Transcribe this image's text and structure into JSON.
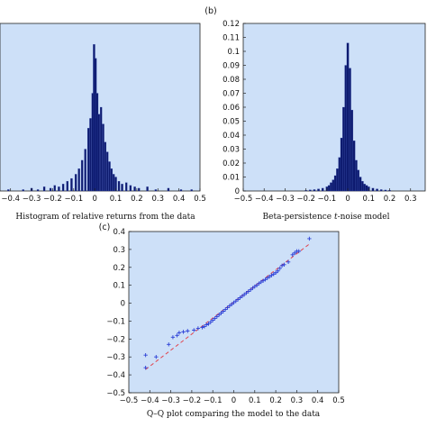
{
  "chart_data": [
    {
      "type": "bar",
      "panel_label": "",
      "caption": "Histogram of relative returns from the data",
      "xlim": [
        -0.45,
        0.5
      ],
      "ylim": [
        0,
        0.12
      ],
      "xticks": [
        "−0.4",
        "−0.3",
        "−0.2",
        "−0.1",
        "0",
        "0.1",
        "0.2",
        "0.3",
        "0.4",
        "0.5"
      ],
      "xtick_values": [
        -0.4,
        -0.3,
        -0.2,
        -0.1,
        0,
        0.1,
        0.2,
        0.3,
        0.4,
        0.5
      ],
      "background": "#cde0f8",
      "bar_color": "#0d1a6e",
      "bins": [
        {
          "x": -0.41,
          "v": 0.001
        },
        {
          "x": -0.34,
          "v": 0.001
        },
        {
          "x": -0.3,
          "v": 0.002
        },
        {
          "x": -0.27,
          "v": 0.001
        },
        {
          "x": -0.24,
          "v": 0.003
        },
        {
          "x": -0.21,
          "v": 0.002
        },
        {
          "x": -0.19,
          "v": 0.004
        },
        {
          "x": -0.17,
          "v": 0.003
        },
        {
          "x": -0.15,
          "v": 0.005
        },
        {
          "x": -0.13,
          "v": 0.007
        },
        {
          "x": -0.11,
          "v": 0.009
        },
        {
          "x": -0.09,
          "v": 0.012
        },
        {
          "x": -0.075,
          "v": 0.016
        },
        {
          "x": -0.06,
          "v": 0.022
        },
        {
          "x": -0.045,
          "v": 0.03
        },
        {
          "x": -0.03,
          "v": 0.045
        },
        {
          "x": -0.02,
          "v": 0.052
        },
        {
          "x": -0.01,
          "v": 0.07
        },
        {
          "x": -0.003,
          "v": 0.105
        },
        {
          "x": 0.004,
          "v": 0.095
        },
        {
          "x": 0.012,
          "v": 0.07
        },
        {
          "x": 0.02,
          "v": 0.055
        },
        {
          "x": 0.03,
          "v": 0.06
        },
        {
          "x": 0.04,
          "v": 0.048
        },
        {
          "x": 0.05,
          "v": 0.035
        },
        {
          "x": 0.06,
          "v": 0.028
        },
        {
          "x": 0.07,
          "v": 0.021
        },
        {
          "x": 0.08,
          "v": 0.016
        },
        {
          "x": 0.09,
          "v": 0.012
        },
        {
          "x": 0.1,
          "v": 0.01
        },
        {
          "x": 0.115,
          "v": 0.007
        },
        {
          "x": 0.13,
          "v": 0.005
        },
        {
          "x": 0.15,
          "v": 0.006
        },
        {
          "x": 0.17,
          "v": 0.004
        },
        {
          "x": 0.19,
          "v": 0.003
        },
        {
          "x": 0.21,
          "v": 0.002
        },
        {
          "x": 0.25,
          "v": 0.003
        },
        {
          "x": 0.29,
          "v": 0.001
        },
        {
          "x": 0.35,
          "v": 0.002
        },
        {
          "x": 0.41,
          "v": 0.001
        },
        {
          "x": 0.46,
          "v": 0.001
        }
      ]
    },
    {
      "type": "bar",
      "panel_label": "(b)",
      "caption_before": "Beta-persistence ",
      "caption_italic": "t",
      "caption_after": "-noise model",
      "xlim": [
        -0.5,
        0.37
      ],
      "ylim": [
        0,
        0.12
      ],
      "xticks": [
        "−0.5",
        "−0.4",
        "−0.3",
        "−0.2",
        "−0.1",
        "0",
        "0.1",
        "0.2",
        "0.3"
      ],
      "xtick_values": [
        -0.5,
        -0.4,
        -0.3,
        -0.2,
        -0.1,
        0,
        0.1,
        0.2,
        0.3
      ],
      "yticks": [
        "0",
        "0.01",
        "0.02",
        "0.03",
        "0.04",
        "0.05",
        "0.06",
        "0.07",
        "0.08",
        "0.09",
        "0.1",
        "0.11",
        "0.12"
      ],
      "ytick_values": [
        0,
        0.01,
        0.02,
        0.03,
        0.04,
        0.05,
        0.06,
        0.07,
        0.08,
        0.09,
        0.1,
        0.11,
        0.12
      ],
      "background": "#cde0f8",
      "bar_color": "#0d1a6e",
      "bins": [
        {
          "x": -0.2,
          "v": 0.0005
        },
        {
          "x": -0.18,
          "v": 0.0008
        },
        {
          "x": -0.16,
          "v": 0.001
        },
        {
          "x": -0.14,
          "v": 0.0015
        },
        {
          "x": -0.12,
          "v": 0.002
        },
        {
          "x": -0.1,
          "v": 0.003
        },
        {
          "x": -0.09,
          "v": 0.004
        },
        {
          "x": -0.08,
          "v": 0.006
        },
        {
          "x": -0.07,
          "v": 0.008
        },
        {
          "x": -0.06,
          "v": 0.011
        },
        {
          "x": -0.05,
          "v": 0.016
        },
        {
          "x": -0.04,
          "v": 0.024
        },
        {
          "x": -0.03,
          "v": 0.038
        },
        {
          "x": -0.02,
          "v": 0.06
        },
        {
          "x": -0.01,
          "v": 0.09
        },
        {
          "x": 0.0,
          "v": 0.106
        },
        {
          "x": 0.01,
          "v": 0.088
        },
        {
          "x": 0.02,
          "v": 0.058
        },
        {
          "x": 0.03,
          "v": 0.036
        },
        {
          "x": 0.04,
          "v": 0.022
        },
        {
          "x": 0.05,
          "v": 0.015
        },
        {
          "x": 0.06,
          "v": 0.01
        },
        {
          "x": 0.07,
          "v": 0.007
        },
        {
          "x": 0.08,
          "v": 0.005
        },
        {
          "x": 0.09,
          "v": 0.004
        },
        {
          "x": 0.1,
          "v": 0.003
        },
        {
          "x": 0.12,
          "v": 0.002
        },
        {
          "x": 0.14,
          "v": 0.0015
        },
        {
          "x": 0.16,
          "v": 0.001
        },
        {
          "x": 0.18,
          "v": 0.0007
        },
        {
          "x": 0.2,
          "v": 0.0005
        }
      ]
    },
    {
      "type": "scatter",
      "panel_label": "(c)",
      "caption": "Q–Q plot comparing the model to the data",
      "xlim": [
        -0.5,
        0.5
      ],
      "ylim": [
        -0.5,
        0.4
      ],
      "xticks": [
        "−0.5",
        "−0.4",
        "−0.3",
        "−0.2",
        "−0.1",
        "0",
        "0.1",
        "0.2",
        "0.3",
        "0.4",
        "0.5"
      ],
      "xtick_values": [
        -0.5,
        -0.4,
        -0.3,
        -0.2,
        -0.1,
        0,
        0.1,
        0.2,
        0.3,
        0.4,
        0.5
      ],
      "yticks": [
        "−0.5",
        "−0.4",
        "−0.3",
        "−0.2",
        "−0.1",
        "0",
        "0.1",
        "0.2",
        "0.3",
        "0.4"
      ],
      "ytick_values": [
        -0.5,
        -0.4,
        -0.3,
        -0.2,
        -0.1,
        0,
        0.1,
        0.2,
        0.3,
        0.4
      ],
      "background": "#cde0f8",
      "marker_color": "#2b3fd6",
      "reference_line_color": "#e0454f",
      "reference_line": [
        [
          -0.42,
          -0.37
        ],
        [
          0.36,
          0.33
        ]
      ],
      "points": [
        [
          -0.42,
          -0.36
        ],
        [
          -0.42,
          -0.29
        ],
        [
          -0.37,
          -0.3
        ],
        [
          -0.31,
          -0.23
        ],
        [
          -0.29,
          -0.19
        ],
        [
          -0.27,
          -0.18
        ],
        [
          -0.26,
          -0.165
        ],
        [
          -0.24,
          -0.16
        ],
        [
          -0.22,
          -0.155
        ],
        [
          -0.19,
          -0.15
        ],
        [
          -0.17,
          -0.14
        ],
        [
          -0.15,
          -0.135
        ],
        [
          -0.14,
          -0.13
        ],
        [
          -0.13,
          -0.12
        ],
        [
          -0.12,
          -0.115
        ],
        [
          -0.11,
          -0.105
        ],
        [
          -0.1,
          -0.095
        ],
        [
          -0.09,
          -0.085
        ],
        [
          -0.08,
          -0.075
        ],
        [
          -0.07,
          -0.065
        ],
        [
          -0.06,
          -0.055
        ],
        [
          -0.05,
          -0.045
        ],
        [
          -0.04,
          -0.035
        ],
        [
          -0.03,
          -0.025
        ],
        [
          -0.02,
          -0.015
        ],
        [
          -0.01,
          -0.006
        ],
        [
          0.0,
          0.003
        ],
        [
          0.01,
          0.012
        ],
        [
          0.02,
          0.021
        ],
        [
          0.03,
          0.03
        ],
        [
          0.04,
          0.039
        ],
        [
          0.05,
          0.048
        ],
        [
          0.06,
          0.057
        ],
        [
          0.07,
          0.066
        ],
        [
          0.08,
          0.075
        ],
        [
          0.09,
          0.084
        ],
        [
          0.1,
          0.093
        ],
        [
          0.11,
          0.1
        ],
        [
          0.12,
          0.11
        ],
        [
          0.13,
          0.118
        ],
        [
          0.14,
          0.125
        ],
        [
          0.15,
          0.132
        ],
        [
          0.16,
          0.14
        ],
        [
          0.17,
          0.148
        ],
        [
          0.18,
          0.155
        ],
        [
          0.19,
          0.162
        ],
        [
          0.2,
          0.17
        ],
        [
          0.21,
          0.18
        ],
        [
          0.22,
          0.195
        ],
        [
          0.23,
          0.21
        ],
        [
          0.24,
          0.215
        ],
        [
          0.26,
          0.23
        ],
        [
          0.28,
          0.27
        ],
        [
          0.29,
          0.28
        ],
        [
          0.3,
          0.29
        ],
        [
          0.31,
          0.29
        ],
        [
          0.36,
          0.36
        ]
      ]
    }
  ]
}
